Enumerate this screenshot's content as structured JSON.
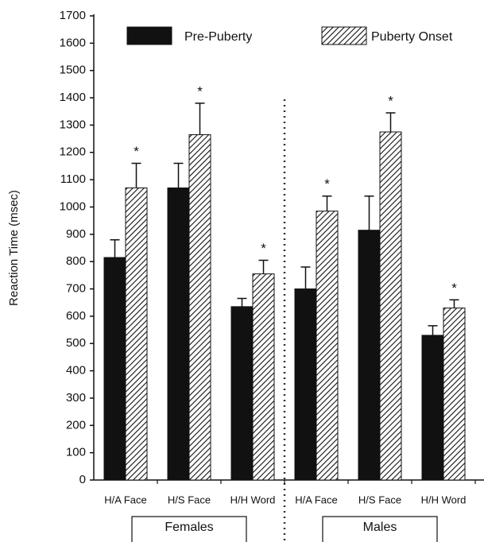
{
  "chart_data": {
    "type": "bar",
    "y_label": "Reaction Time (msec)",
    "categories": [
      "H/A Face",
      "H/S Face",
      "H/H Word",
      "H/A Face",
      "H/S Face",
      "H/H Word"
    ],
    "groups": [
      "Females",
      "Males"
    ],
    "series": [
      {
        "name": "Pre-Puberty",
        "color": "#111111",
        "values": [
          815,
          1070,
          635,
          700,
          915,
          530
        ],
        "errors": [
          65,
          90,
          30,
          80,
          125,
          35
        ]
      },
      {
        "name": "Puberty Onset",
        "color": "hatched",
        "values": [
          1070,
          1265,
          755,
          985,
          1275,
          630
        ],
        "errors": [
          90,
          115,
          50,
          55,
          70,
          30
        ],
        "significance_marks": [
          "*",
          "*",
          "*",
          "*",
          "*",
          "*"
        ]
      }
    ],
    "ylim": [
      0,
      1700
    ],
    "yticks": [
      0,
      100,
      200,
      300,
      400,
      500,
      600,
      700,
      800,
      900,
      1000,
      1100,
      1200,
      1300,
      1400,
      1500,
      1600,
      1700
    ]
  }
}
